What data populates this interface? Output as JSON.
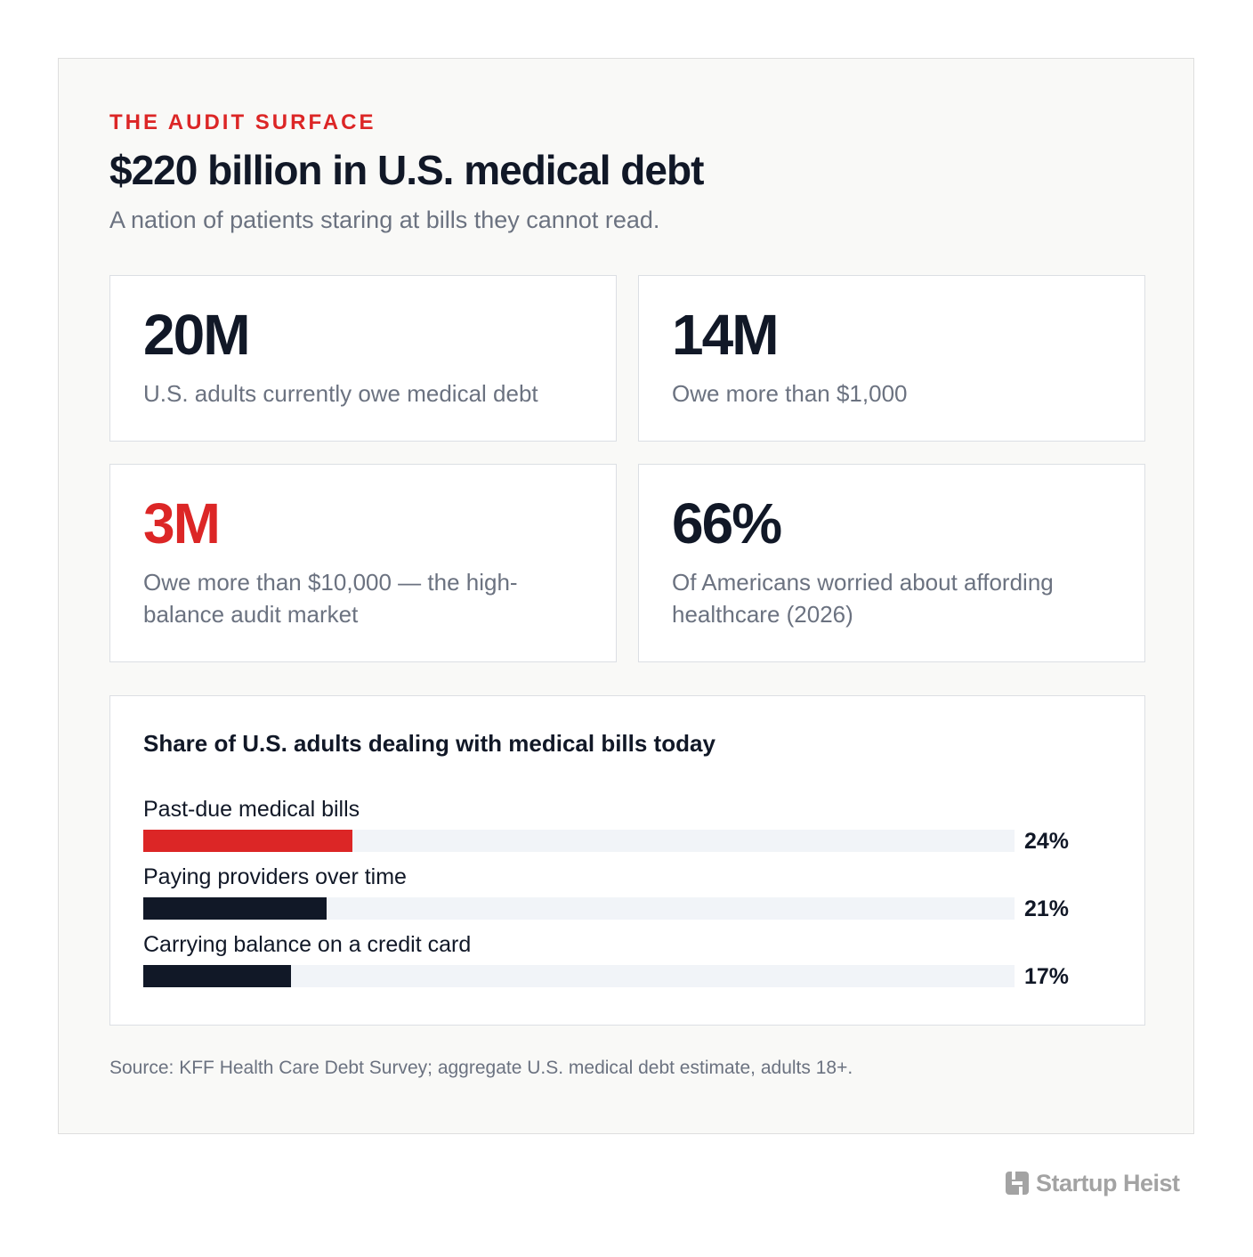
{
  "header": {
    "eyebrow": "THE AUDIT SURFACE",
    "title": "$220 billion in U.S. medical debt",
    "subtitle": "A nation of patients staring at bills they cannot read."
  },
  "stats": [
    {
      "value": "20M",
      "description": "U.S. adults currently owe medical debt"
    },
    {
      "value": "14M",
      "description": "Owe more than $1,000"
    },
    {
      "value": "3M",
      "description": "Owe more than $10,000 — the high-balance audit market"
    },
    {
      "value": "66%",
      "description": "Of Americans worried about affording healthcare (2026)"
    }
  ],
  "colors": {
    "accent": "#dc2626",
    "dark": "#111827",
    "track": "#f1f4f8"
  },
  "chart_data": {
    "type": "bar",
    "orientation": "horizontal",
    "title": "Share of U.S. adults dealing with medical bills today",
    "categories": [
      "Past-due medical bills",
      "Paying providers over time",
      "Carrying balance on a credit card"
    ],
    "values": [
      24,
      21,
      17
    ],
    "value_labels": [
      "24%",
      "21%",
      "17%"
    ],
    "bar_colors": [
      "#dc2626",
      "#111827",
      "#111827"
    ],
    "xlim": [
      0,
      100
    ],
    "grid": false,
    "legend": "none"
  },
  "footer": {
    "source": "Source: KFF Health Care Debt Survey; aggregate U.S. medical debt estimate, adults 18+."
  },
  "brand": {
    "name": "Startup Heist",
    "icon": "startup-heist-logo-icon"
  }
}
